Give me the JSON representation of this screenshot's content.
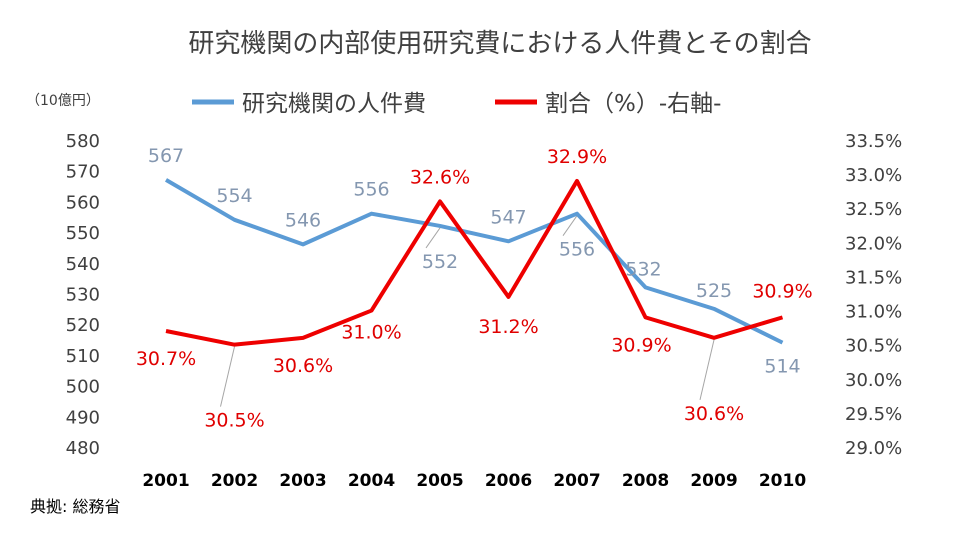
{
  "colors": {
    "personnel": "#5b9bd5",
    "ratio": "#ee0000",
    "personnel_label": "#8497b0",
    "ratio_label": "#e00000"
  },
  "chart_data": {
    "type": "line",
    "title": "研究機関の内部使用研究費における人件費とその割合",
    "left_axis_unit": "（10億円）",
    "source": "典拠: 総務省",
    "categories": [
      "2001",
      "2002",
      "2003",
      "2004",
      "2005",
      "2006",
      "2007",
      "2008",
      "2009",
      "2010"
    ],
    "y_left": {
      "min": 480,
      "max": 580,
      "step": 10,
      "ticks": [
        "580",
        "570",
        "560",
        "550",
        "540",
        "530",
        "520",
        "510",
        "500",
        "490",
        "480"
      ]
    },
    "y_right": {
      "min": 29.0,
      "max": 33.5,
      "step": 0.5,
      "ticks": [
        "33.5%",
        "33.0%",
        "32.5%",
        "32.0%",
        "31.5%",
        "31.0%",
        "30.5%",
        "30.0%",
        "29.5%",
        "29.0%"
      ]
    },
    "legend_position": "top",
    "grid": false,
    "series": [
      {
        "name": "研究機関の人件費",
        "axis": "left",
        "values": [
          567,
          554,
          546,
          556,
          552,
          547,
          556,
          532,
          525,
          514
        ],
        "labels": [
          "567",
          "554",
          "546",
          "556",
          "552",
          "547",
          "556",
          "532",
          "525",
          "514"
        ]
      },
      {
        "name": "割合（%）-右軸-",
        "axis": "right",
        "values": [
          30.7,
          30.5,
          30.6,
          31.0,
          32.6,
          31.2,
          32.9,
          30.9,
          30.6,
          30.9
        ],
        "labels": [
          "30.7%",
          "30.5%",
          "30.6%",
          "31.0%",
          "32.6%",
          "31.2%",
          "32.9%",
          "30.9%",
          "30.6%",
          "30.9%"
        ]
      }
    ]
  }
}
